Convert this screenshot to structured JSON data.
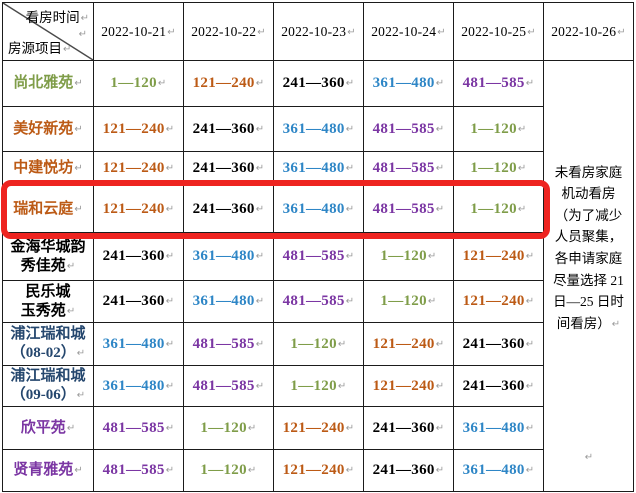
{
  "paragraph_mark": "↵",
  "corner": {
    "top_label": "看房时间",
    "bottom_label": "房源项目"
  },
  "columns": [
    "2022-10-21",
    "2022-10-22",
    "2022-10-23",
    "2022-10-24",
    "2022-10-25",
    "2022-10-26"
  ],
  "value_colors": {
    "1—120": "green",
    "121—240": "orange",
    "241—360": "black",
    "361—480": "blue",
    "481—585": "purple"
  },
  "colors": {
    "green": "#7f9d49",
    "orange": "#bc5a15",
    "black": "#000000",
    "blue": "#2e86c6",
    "purple": "#7b36a3",
    "navy": "#25476e",
    "highlight": "#ee2420"
  },
  "rows": [
    {
      "name_lines": [
        "尚北雅苑"
      ],
      "name_color": "green",
      "highlighted": false,
      "values": [
        "1—120",
        "121—240",
        "241—360",
        "361—480",
        "481—585"
      ]
    },
    {
      "name_lines": [
        "美好新苑"
      ],
      "name_color": "orange",
      "highlighted": false,
      "values": [
        "121—240",
        "241—360",
        "361—480",
        "481—585",
        "1—120"
      ]
    },
    {
      "name_lines": [
        "中建悦坊"
      ],
      "name_color": "orange",
      "highlighted": false,
      "values": [
        "121—240",
        "241—360",
        "361—480",
        "481—585",
        "1—120"
      ]
    },
    {
      "name_lines": [
        "瑞和云庭"
      ],
      "name_color": "orange",
      "highlighted": true,
      "values": [
        "121—240",
        "241—360",
        "361—480",
        "481—585",
        "1—120"
      ]
    },
    {
      "name_lines": [
        "金海华城韵",
        "秀佳苑"
      ],
      "name_color": "black",
      "highlighted": false,
      "values": [
        "241—360",
        "361—480",
        "481—585",
        "1—120",
        "121—240"
      ]
    },
    {
      "name_lines": [
        "民乐城",
        "玉秀苑"
      ],
      "name_color": "black",
      "highlighted": false,
      "values": [
        "241—360",
        "361—480",
        "481—585",
        "1—120",
        "121—240"
      ]
    },
    {
      "name_lines": [
        "浦江瑞和城",
        "（08-02）"
      ],
      "name_color": "navy",
      "highlighted": false,
      "values": [
        "361—480",
        "481—585",
        "1—120",
        "121—240",
        "241—360"
      ]
    },
    {
      "name_lines": [
        "浦江瑞和城",
        "（09-06）"
      ],
      "name_color": "navy",
      "highlighted": false,
      "values": [
        "361—480",
        "481—585",
        "1—120",
        "121—240",
        "241—360"
      ]
    },
    {
      "name_lines": [
        "欣平苑"
      ],
      "name_color": "purple",
      "highlighted": false,
      "values": [
        "481—585",
        "1—120",
        "121—240",
        "241—360",
        "361—480"
      ]
    },
    {
      "name_lines": [
        "贤青雅苑"
      ],
      "name_color": "purple",
      "highlighted": false,
      "values": [
        "481—585",
        "1—120",
        "121—240",
        "241—360",
        "361—480"
      ]
    }
  ],
  "note": {
    "lines": [
      "未看房家庭",
      "机动看房",
      "（为了减少",
      "人员聚集，",
      "各申请家庭",
      "尽量选择 21",
      "日—25 日时",
      "间看房）"
    ]
  }
}
